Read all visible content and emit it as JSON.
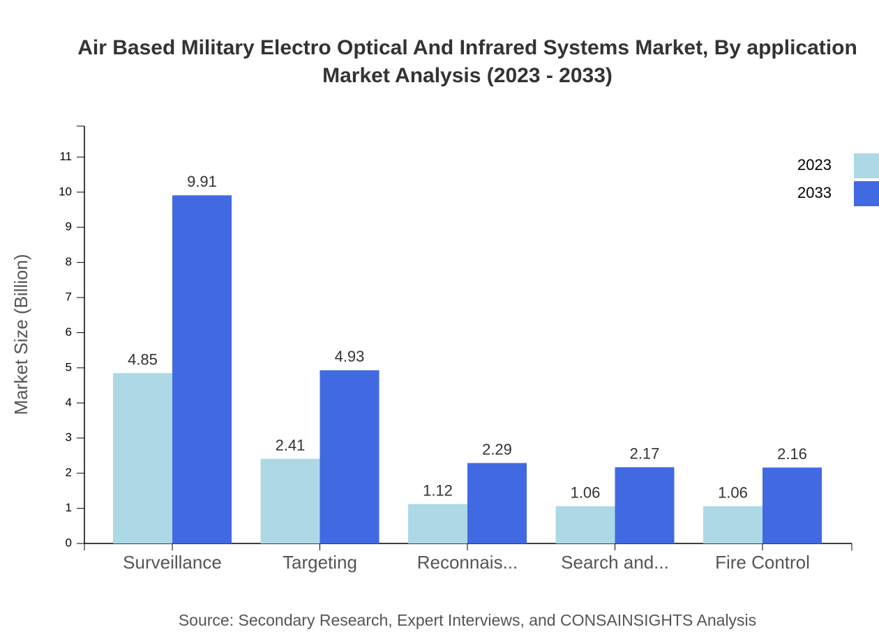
{
  "chart_data": {
    "type": "bar",
    "title": [
      "Air Based Military Electro Optical And Infrared Systems Market, By application",
      "Market Analysis (2023 - 2033)"
    ],
    "y_label": "Market Size (Billion)",
    "source": "Source: Secondary Research, Expert Interviews, and CONSAINSIGHTS Analysis",
    "categories": [
      "Surveillance",
      "Targeting",
      "Reconnais...",
      "Search and...",
      "Fire Control"
    ],
    "series": [
      {
        "name": "2023",
        "color": "#add8e6",
        "values": [
          4.85,
          2.41,
          1.12,
          1.06,
          1.06
        ]
      },
      {
        "name": "2033",
        "color": "#4169e1",
        "values": [
          9.91,
          4.93,
          2.29,
          2.17,
          2.16
        ]
      }
    ],
    "ylim": [
      0,
      11.88
    ],
    "yticks": [
      0,
      1,
      2,
      3,
      4,
      5,
      6,
      7,
      8,
      9,
      10,
      11
    ],
    "legend": "top-right"
  }
}
